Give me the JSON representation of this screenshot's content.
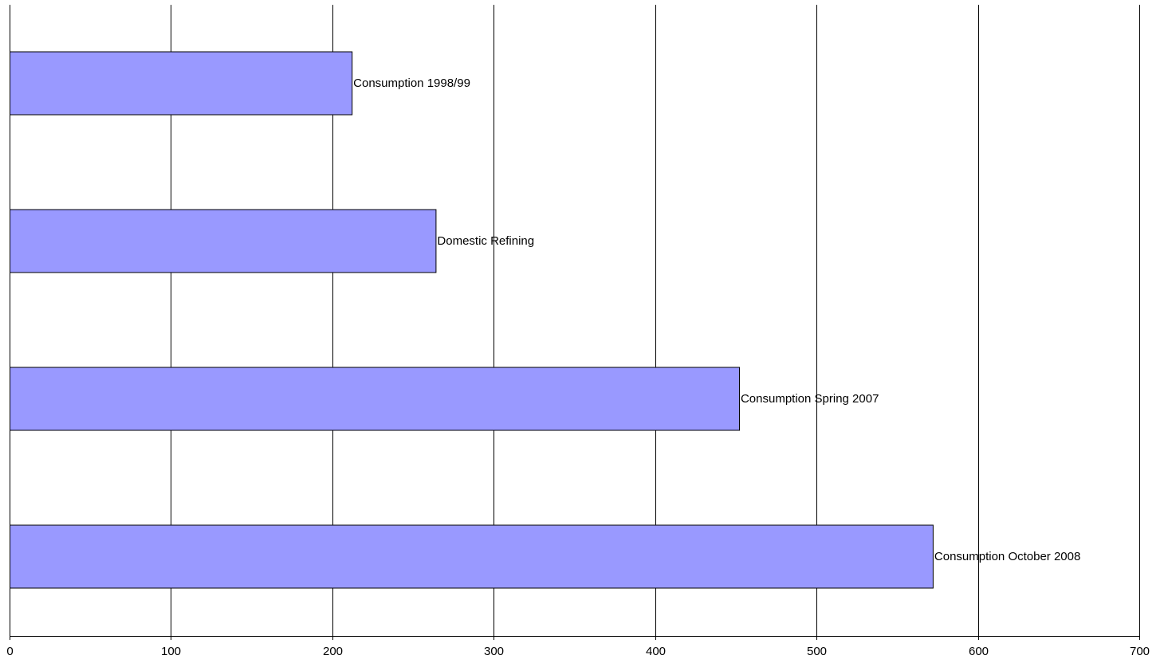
{
  "chart_data": {
    "type": "bar",
    "orientation": "horizontal",
    "categories": [
      "Consumption 1998/99",
      "Domestic Refining",
      "Consumption Spring 2007",
      "Consumption October 2008"
    ],
    "values": [
      212,
      264,
      452,
      572
    ],
    "xlim": [
      0,
      700
    ],
    "xticks": [
      0,
      100,
      200,
      300,
      400,
      500,
      600,
      700
    ],
    "tick_labels": [
      "0",
      "100",
      "200",
      "300",
      "400",
      "500",
      "600",
      "700"
    ],
    "grid": "vertical",
    "legend": "none",
    "data_labels": "category-name-at-bar-end",
    "title": "",
    "xlabel": "",
    "ylabel": "",
    "colors": {
      "bar_fill": "#9999ff",
      "bar_stroke": "#000000",
      "grid": "#000000",
      "axis": "#000000"
    }
  }
}
